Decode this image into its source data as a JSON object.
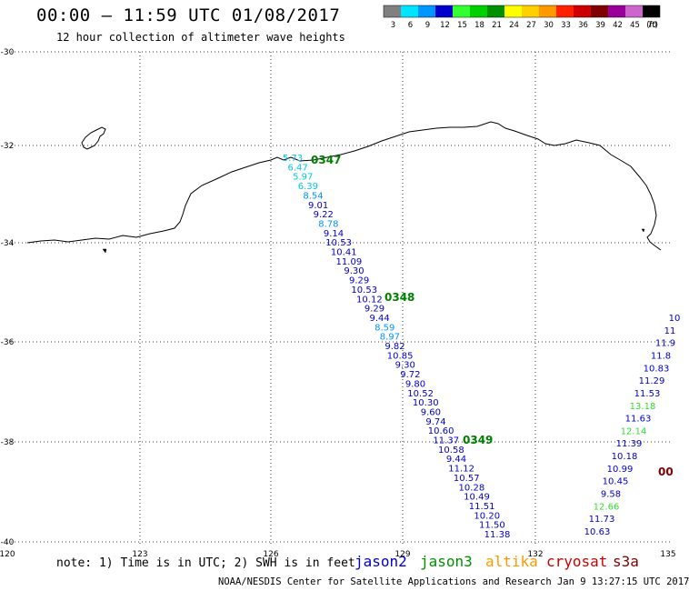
{
  "header": {
    "title": "00:00 – 11:59 UTC 01/08/2017",
    "subtitle": "12 hour collection of altimeter wave heights"
  },
  "legend": {
    "unit": "(ft)",
    "bins": [
      {
        "label": "3",
        "color": "#808080"
      },
      {
        "label": "6",
        "color": "#00e5ff"
      },
      {
        "label": "9",
        "color": "#0096ff"
      },
      {
        "label": "12",
        "color": "#0000cd"
      },
      {
        "label": "15",
        "color": "#33ff33"
      },
      {
        "label": "18",
        "color": "#00d000"
      },
      {
        "label": "21",
        "color": "#009000"
      },
      {
        "label": "24",
        "color": "#ffff00"
      },
      {
        "label": "27",
        "color": "#ffd000"
      },
      {
        "label": "30",
        "color": "#ff9900"
      },
      {
        "label": "33",
        "color": "#ff2200"
      },
      {
        "label": "36",
        "color": "#cc0000"
      },
      {
        "label": "39",
        "color": "#800000"
      },
      {
        "label": "42",
        "color": "#990099"
      },
      {
        "label": "45",
        "color": "#cc66cc"
      },
      {
        "label": "70",
        "color": "#000000"
      }
    ]
  },
  "map": {
    "lon_ticks": [
      "120",
      "123",
      "126",
      "129",
      "132",
      "135"
    ],
    "lat_ticks": [
      "-30",
      "-32",
      "-34",
      "-36",
      "-38",
      "-40"
    ],
    "times": [
      {
        "label": "0347",
        "color": "#008000"
      },
      {
        "label": "0348",
        "color": "#008000"
      },
      {
        "label": "0349",
        "color": "#008000"
      },
      {
        "label": "00",
        "color": "#800000"
      }
    ]
  },
  "track_a": [
    {
      "v": "5.73",
      "c": "#00c8e0"
    },
    {
      "v": "6.47",
      "c": "#00c8e0"
    },
    {
      "v": "5.97",
      "c": "#00c8e0"
    },
    {
      "v": "6.39",
      "c": "#00c8e0"
    },
    {
      "v": "8.54",
      "c": "#0096ff"
    },
    {
      "v": "9.01",
      "c": "#0000cd"
    },
    {
      "v": "9.22",
      "c": "#0000cd"
    },
    {
      "v": "8.78",
      "c": "#0096ff"
    },
    {
      "v": "9.14",
      "c": "#0000cd"
    },
    {
      "v": "10.53",
      "c": "#0000cd"
    },
    {
      "v": "10.41",
      "c": "#0000cd"
    },
    {
      "v": "11.09",
      "c": "#0000cd"
    },
    {
      "v": "9.30",
      "c": "#0000cd"
    },
    {
      "v": "9.29",
      "c": "#0000cd"
    },
    {
      "v": "10.53",
      "c": "#0000cd"
    },
    {
      "v": "10.12",
      "c": "#0000cd"
    },
    {
      "v": "9.29",
      "c": "#0000cd"
    },
    {
      "v": "9.44",
      "c": "#0000cd"
    },
    {
      "v": "8.59",
      "c": "#0096ff"
    },
    {
      "v": "8.97",
      "c": "#0096ff"
    },
    {
      "v": "9.82",
      "c": "#0000cd"
    },
    {
      "v": "10.85",
      "c": "#0000cd"
    },
    {
      "v": "9.30",
      "c": "#0000cd"
    },
    {
      "v": "9.72",
      "c": "#0000cd"
    },
    {
      "v": "9.80",
      "c": "#0000cd"
    },
    {
      "v": "10.52",
      "c": "#0000cd"
    },
    {
      "v": "10.30",
      "c": "#0000cd"
    },
    {
      "v": "9.60",
      "c": "#0000cd"
    },
    {
      "v": "9.74",
      "c": "#0000cd"
    },
    {
      "v": "10.60",
      "c": "#0000cd"
    },
    {
      "v": "11.37",
      "c": "#0000cd"
    },
    {
      "v": "10.58",
      "c": "#0000cd"
    },
    {
      "v": "9.44",
      "c": "#0000cd"
    },
    {
      "v": "11.12",
      "c": "#0000cd"
    },
    {
      "v": "10.57",
      "c": "#0000cd"
    },
    {
      "v": "10.28",
      "c": "#0000cd"
    },
    {
      "v": "10.49",
      "c": "#0000cd"
    },
    {
      "v": "11.51",
      "c": "#0000cd"
    },
    {
      "v": "10.20",
      "c": "#0000cd"
    },
    {
      "v": "11.50",
      "c": "#0000cd"
    },
    {
      "v": "11.38",
      "c": "#0000cd"
    }
  ],
  "track_b": [
    {
      "v": "10",
      "c": "#0000cd"
    },
    {
      "v": "11",
      "c": "#0000cd"
    },
    {
      "v": "11.9",
      "c": "#0000cd"
    },
    {
      "v": "11.8",
      "c": "#0000cd"
    },
    {
      "v": "10.83",
      "c": "#0000cd"
    },
    {
      "v": "11.29",
      "c": "#0000cd"
    },
    {
      "v": "11.53",
      "c": "#0000cd"
    },
    {
      "v": "13.18",
      "c": "#33dd33"
    },
    {
      "v": "11.63",
      "c": "#0000cd"
    },
    {
      "v": "12.14",
      "c": "#33dd33"
    },
    {
      "v": "11.39",
      "c": "#0000cd"
    },
    {
      "v": "10.18",
      "c": "#0000cd"
    },
    {
      "v": "10.99",
      "c": "#0000cd"
    },
    {
      "v": "10.45",
      "c": "#0000cd"
    },
    {
      "v": "9.58",
      "c": "#0000cd"
    },
    {
      "v": "12.66",
      "c": "#33dd33"
    },
    {
      "v": "11.73",
      "c": "#0000cd"
    },
    {
      "v": "10.63",
      "c": "#0000cd"
    }
  ],
  "footer": {
    "note": "note: 1) Time is in UTC; 2) SWH is in feet",
    "satellites": [
      {
        "name": "jason2",
        "color": "#0000cd"
      },
      {
        "name": "jason3",
        "color": "#009000"
      },
      {
        "name": "altika",
        "color": "#ff9900"
      },
      {
        "name": "cryosat",
        "color": "#cc0000"
      },
      {
        "name": "s3a",
        "color": "#800000"
      }
    ],
    "credit": "NOAA/NESDIS Center for Satellite Applications and Research   Jan  9 13:27:15 UTC 2017"
  }
}
